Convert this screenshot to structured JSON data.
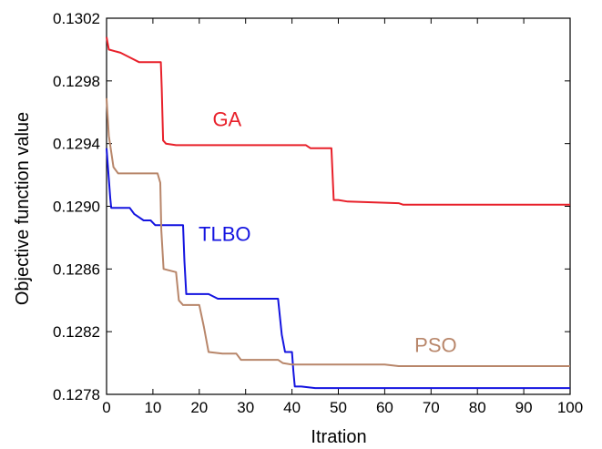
{
  "chart_data": {
    "type": "line",
    "title": "",
    "xlabel": "Itration",
    "ylabel": "Objective function value",
    "xlim": [
      0,
      100
    ],
    "ylim": [
      0.1278,
      0.1302
    ],
    "xticks": [
      "0",
      "10",
      "20",
      "30",
      "40",
      "50",
      "60",
      "70",
      "80",
      "90",
      "100"
    ],
    "yticks": [
      "0.1278",
      "0.1282",
      "0.1286",
      "0.1290",
      "0.1294",
      "0.1298",
      "0.1302"
    ],
    "grid": false,
    "legend": "none",
    "series": [
      {
        "name": "GA",
        "color": "#e8202a",
        "label_at": [
          26,
          0.12951
        ],
        "points": [
          [
            0,
            0.13008
          ],
          [
            0.5,
            0.13
          ],
          [
            3,
            0.12998
          ],
          [
            5,
            0.12995
          ],
          [
            7,
            0.12992
          ],
          [
            11.7,
            0.12992
          ],
          [
            11.9,
            0.12975
          ],
          [
            12.2,
            0.12942
          ],
          [
            12.8,
            0.1294
          ],
          [
            15,
            0.12939
          ],
          [
            30,
            0.12939
          ],
          [
            43,
            0.12939
          ],
          [
            44,
            0.12937
          ],
          [
            48.5,
            0.12937
          ],
          [
            49,
            0.12904
          ],
          [
            50,
            0.12904
          ],
          [
            52,
            0.12903
          ],
          [
            63,
            0.12902
          ],
          [
            64,
            0.12901
          ],
          [
            100,
            0.12901
          ]
        ]
      },
      {
        "name": "TLBO",
        "color": "#1414e0",
        "label_at": [
          25.5,
          0.12878
        ],
        "points": [
          [
            0,
            0.12937
          ],
          [
            0.8,
            0.12905
          ],
          [
            1,
            0.12899
          ],
          [
            5,
            0.12899
          ],
          [
            6,
            0.12895
          ],
          [
            8,
            0.12891
          ],
          [
            9.5,
            0.12891
          ],
          [
            10.5,
            0.12888
          ],
          [
            16.5,
            0.12888
          ],
          [
            16.8,
            0.12865
          ],
          [
            17.2,
            0.12844
          ],
          [
            22,
            0.12844
          ],
          [
            24,
            0.12841
          ],
          [
            37,
            0.12841
          ],
          [
            37.8,
            0.12818
          ],
          [
            38.5,
            0.12807
          ],
          [
            40,
            0.12807
          ],
          [
            40.3,
            0.12795
          ],
          [
            40.6,
            0.12785
          ],
          [
            42,
            0.12785
          ],
          [
            45,
            0.12784
          ],
          [
            100,
            0.12784
          ]
        ]
      },
      {
        "name": "PSO",
        "color": "#b8866a",
        "label_at": [
          71,
          0.12807
        ],
        "points": [
          [
            0,
            0.12969
          ],
          [
            0.5,
            0.12945
          ],
          [
            1.5,
            0.12925
          ],
          [
            2.5,
            0.12921
          ],
          [
            11,
            0.12921
          ],
          [
            11.6,
            0.12915
          ],
          [
            11.8,
            0.12885
          ],
          [
            12.3,
            0.1286
          ],
          [
            15,
            0.12858
          ],
          [
            15.6,
            0.1284
          ],
          [
            16.5,
            0.12837
          ],
          [
            20,
            0.12837
          ],
          [
            21,
            0.12823
          ],
          [
            22,
            0.12807
          ],
          [
            25,
            0.12806
          ],
          [
            28,
            0.12806
          ],
          [
            29,
            0.12802
          ],
          [
            37,
            0.12802
          ],
          [
            38,
            0.128
          ],
          [
            40,
            0.12799
          ],
          [
            60,
            0.12799
          ],
          [
            63,
            0.12798
          ],
          [
            100,
            0.12798
          ]
        ]
      }
    ]
  }
}
